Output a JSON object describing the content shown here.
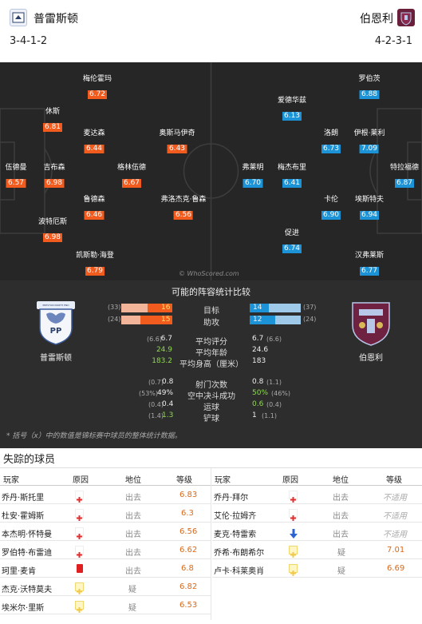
{
  "header": {
    "home": {
      "name": "普雷斯顿",
      "formation": "3-4-1-2"
    },
    "away": {
      "name": "伯恩利",
      "formation": "4-2-3-1"
    }
  },
  "colors": {
    "home": "#f15b1e",
    "away": "#1c93d6",
    "pitch": "#262626",
    "panel": "#2d2d2d"
  },
  "pitch": {
    "watermark": "© WhoScored.com",
    "home_players": [
      {
        "name": "梅伦霍玛",
        "rating": "6.72"
      },
      {
        "name": "休斯",
        "rating": "6.81"
      },
      {
        "name": "麦达森",
        "rating": "6.44"
      },
      {
        "name": "奥斯马伊奇",
        "rating": "6.43"
      },
      {
        "name": "伍德曼",
        "rating": "6.57"
      },
      {
        "name": "吉布森",
        "rating": "6.98"
      },
      {
        "name": "格林伍德",
        "rating": "6.67"
      },
      {
        "name": "鲁德森",
        "rating": "6.46"
      },
      {
        "name": "弗洛杰克·鲁森",
        "rating": "6.56"
      },
      {
        "name": "波特厄斯",
        "rating": "6.98"
      },
      {
        "name": "凯斯勒·海登",
        "rating": "6.79"
      }
    ],
    "away_players": [
      {
        "name": "罗伯茨",
        "rating": "6.88"
      },
      {
        "name": "爱德华兹",
        "rating": "6.13"
      },
      {
        "name": "洛朗",
        "rating": "6.73"
      },
      {
        "name": "伊根·莱利",
        "rating": "7.09"
      },
      {
        "name": "弗莱明",
        "rating": "6.70"
      },
      {
        "name": "梅杰布里",
        "rating": "6.41"
      },
      {
        "name": "特拉福德",
        "rating": "6.87"
      },
      {
        "name": "卡伦",
        "rating": "6.90"
      },
      {
        "name": "埃斯特夫",
        "rating": "6.94"
      },
      {
        "name": "促进",
        "rating": "6.74"
      },
      {
        "name": "汉弗莱斯",
        "rating": "6.77"
      }
    ]
  },
  "compare": {
    "title": "可能的阵容统计比较",
    "home_badge_name": "普雷斯顿",
    "away_badge_name": "伯恩利",
    "home_badge_text": "PP",
    "home_badge_banner": "PRESTON NORTH END",
    "bars": [
      {
        "label": "目标",
        "home_total": "(33)",
        "home": "16",
        "away": "14",
        "away_total": "(37)",
        "home_frac": 0.48,
        "away_frac": 0.38
      },
      {
        "label": "助攻",
        "home_total": "(24)",
        "home": "15",
        "away": "12",
        "away_total": "(24)",
        "home_frac": 0.62,
        "away_frac": 0.5
      }
    ],
    "stats1": [
      {
        "label": "平均评分",
        "home_sub": "(6.6)",
        "home": "6.7",
        "away": "6.7",
        "away_sub": "(6.6)"
      },
      {
        "label": "平均年龄",
        "home_sub": "",
        "home": "24.9",
        "away": "24.6",
        "away_sub": ""
      },
      {
        "label": "平均身高（厘米）",
        "home_sub": "",
        "home": "183.2",
        "away": "183",
        "away_sub": ""
      }
    ],
    "stats2": [
      {
        "label": "射门次数",
        "home_sub": "(0.7)",
        "home": "0.8",
        "away": "0.8",
        "away_sub": "(1.1)"
      },
      {
        "label": "空中决斗成功",
        "home_sub": "(53%)",
        "home": "49%",
        "away": "50%",
        "away_sub": "(46%)"
      },
      {
        "label": "运球",
        "home_sub": "(0.4)",
        "home": "0.4",
        "away": "0.6",
        "away_sub": "(0.4)"
      },
      {
        "label": "铲球",
        "home_sub": "(1.4)",
        "home": "1.3",
        "away": "1",
        "away_sub": "(1.1)"
      }
    ],
    "footnote": "* 括号（x）中的数值是锦标赛中球员的整体统计数据。"
  },
  "missing": {
    "title": "失踪的球员",
    "headers": {
      "player": "玩家",
      "reason": "原因",
      "status": "地位",
      "rating": "等级"
    },
    "home": [
      {
        "player": "乔丹·斯托里",
        "reason": "injury",
        "status": "出去",
        "rating": "6.83"
      },
      {
        "player": "杜安·霍姆斯",
        "reason": "injury",
        "status": "出去",
        "rating": "6.3"
      },
      {
        "player": "本杰明·怀特曼",
        "reason": "injury",
        "status": "出去",
        "rating": "6.56"
      },
      {
        "player": "罗伯特·布雷迪",
        "reason": "injury",
        "status": "出去",
        "rating": "6.62"
      },
      {
        "player": "珂里·麦肯",
        "reason": "red-card",
        "status": "出去",
        "rating": "6.8"
      },
      {
        "player": "杰克·沃特莫夫",
        "reason": "doubt",
        "status": "疑",
        "rating": "6.82"
      },
      {
        "player": "埃米尔·里斯",
        "reason": "doubt",
        "status": "疑",
        "rating": "6.53"
      }
    ],
    "away": [
      {
        "player": "乔丹·拜尔",
        "reason": "injury",
        "status": "出去",
        "rating": "不适用"
      },
      {
        "player": "艾伦·拉姆齐",
        "reason": "injury",
        "status": "出去",
        "rating": "不适用"
      },
      {
        "player": "麦克·特雷索",
        "reason": "suspended",
        "status": "出去",
        "rating": "不适用"
      },
      {
        "player": "乔希·布朗希尔",
        "reason": "doubt",
        "status": "疑",
        "rating": "7.01"
      },
      {
        "player": "卢卡·科莱奥肖",
        "reason": "doubt",
        "status": "疑",
        "rating": "6.69"
      }
    ]
  }
}
